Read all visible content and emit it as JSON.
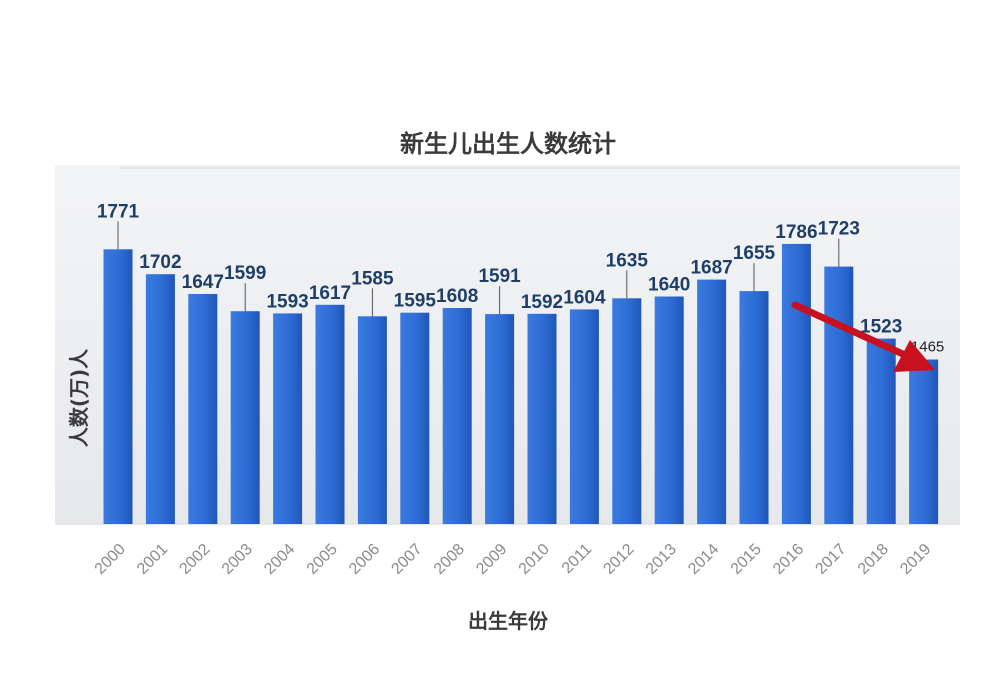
{
  "chart_data": {
    "type": "bar",
    "title": "新生儿出生人数统计",
    "xlabel": "出生年份",
    "ylabel": "人数(万)人",
    "categories": [
      "2000",
      "2001",
      "2002",
      "2003",
      "2004",
      "2005",
      "2006",
      "2007",
      "2008",
      "2009",
      "2010",
      "2011",
      "2012",
      "2013",
      "2014",
      "2015",
      "2016",
      "2017",
      "2018",
      "2019"
    ],
    "values": [
      1771,
      1702,
      1647,
      1599,
      1593,
      1617,
      1585,
      1595,
      1608,
      1591,
      1592,
      1604,
      1635,
      1640,
      1687,
      1655,
      1786,
      1723,
      1523,
      1465
    ],
    "grid": false,
    "legend": "none",
    "annotation": "red downward arrow pointing to 2019",
    "colors": {
      "bar": "#2e6fd6",
      "bar_dark": "#1f56b8",
      "label": "#1f3f66",
      "arrow": "#c8101e"
    }
  }
}
